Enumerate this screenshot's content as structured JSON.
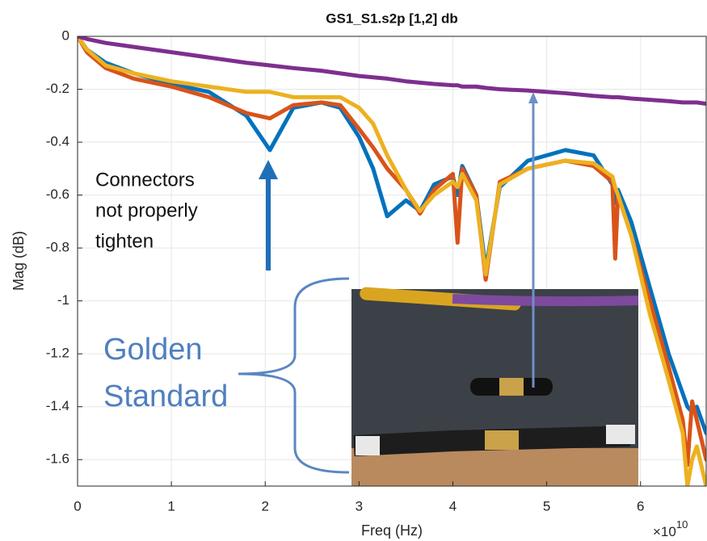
{
  "chart_data": {
    "type": "line",
    "title": "GS1_S1.s2p [1,2] db",
    "xlabel": "Freq (Hz)",
    "ylabel": "Mag (dB)",
    "x_multiplier": {
      "base": "×10",
      "exponent": "10"
    },
    "xlim": [
      0,
      67000000000.0
    ],
    "ylim": [
      -1.7,
      0
    ],
    "xticks": [
      0,
      {
        "value": 10000000000.0,
        "label": "1"
      },
      {
        "value": 20000000000.0,
        "label": "2"
      },
      {
        "value": 30000000000.0,
        "label": "3"
      },
      {
        "value": 40000000000.0,
        "label": "4"
      },
      {
        "value": 50000000000.0,
        "label": "5"
      },
      {
        "value": 60000000000.0,
        "label": "6"
      }
    ],
    "yticks": [
      0,
      -0.2,
      -0.4,
      -0.6,
      -0.8,
      -1,
      -1.2,
      -1.4,
      -1.6
    ],
    "grid": true,
    "x": [
      0,
      1000000000.0,
      3000000000.0,
      6000000000.0,
      10000000000.0,
      14000000000.0,
      18000000000.0,
      20500000000.0,
      23000000000.0,
      26000000000.0,
      28000000000.0,
      30000000000.0,
      31500000000.0,
      33000000000.0,
      35000000000.0,
      36500000000.0,
      38000000000.0,
      40000000000.0,
      40500000000.0,
      41000000000.0,
      42500000000.0,
      43500000000.0,
      45000000000.0,
      48000000000.0,
      52000000000.0,
      55000000000.0,
      57000000000.0,
      57300000000.0,
      57600000000.0,
      59000000000.0,
      61000000000.0,
      63000000000.0,
      64500000000.0,
      65000000000.0,
      65500000000.0,
      66000000000.0,
      67000000000.0
    ],
    "series": [
      {
        "color": "#0072bd",
        "values": [
          0,
          -0.05,
          -0.1,
          -0.14,
          -0.18,
          -0.21,
          -0.3,
          -0.43,
          -0.27,
          -0.25,
          -0.27,
          -0.38,
          -0.5,
          -0.68,
          -0.62,
          -0.66,
          -0.56,
          -0.53,
          -0.6,
          -0.49,
          -0.6,
          -0.88,
          -0.57,
          -0.47,
          -0.43,
          -0.45,
          -0.56,
          -0.63,
          -0.58,
          -0.7,
          -0.95,
          -1.2,
          -1.35,
          -1.4,
          -1.42,
          -1.4,
          -1.5
        ]
      },
      {
        "color": "#d95319",
        "values": [
          0,
          -0.06,
          -0.12,
          -0.16,
          -0.19,
          -0.23,
          -0.29,
          -0.31,
          -0.26,
          -0.25,
          -0.26,
          -0.35,
          -0.42,
          -0.5,
          -0.58,
          -0.67,
          -0.58,
          -0.52,
          -0.78,
          -0.5,
          -0.6,
          -0.92,
          -0.55,
          -0.5,
          -0.47,
          -0.49,
          -0.55,
          -0.84,
          -0.6,
          -0.75,
          -1.0,
          -1.25,
          -1.45,
          -1.62,
          -1.38,
          -1.45,
          -1.6
        ]
      },
      {
        "color": "#edb120",
        "values": [
          0,
          -0.05,
          -0.11,
          -0.14,
          -0.17,
          -0.19,
          -0.21,
          -0.21,
          -0.23,
          -0.23,
          -0.23,
          -0.27,
          -0.33,
          -0.45,
          -0.58,
          -0.66,
          -0.6,
          -0.55,
          -0.57,
          -0.52,
          -0.62,
          -0.9,
          -0.56,
          -0.5,
          -0.47,
          -0.48,
          -0.53,
          -0.57,
          -0.6,
          -0.75,
          -1.05,
          -1.3,
          -1.5,
          -1.7,
          -1.6,
          -1.55,
          -1.7
        ]
      },
      {
        "color": "#7e2f8e",
        "values": [
          0,
          -0.01,
          -0.025,
          -0.04,
          -0.06,
          -0.08,
          -0.1,
          -0.11,
          -0.12,
          -0.13,
          -0.14,
          -0.15,
          -0.155,
          -0.16,
          -0.17,
          -0.175,
          -0.18,
          -0.185,
          -0.185,
          -0.19,
          -0.19,
          -0.195,
          -0.2,
          -0.205,
          -0.215,
          -0.225,
          -0.23,
          -0.23,
          -0.23,
          -0.235,
          -0.24,
          -0.245,
          -0.25,
          -0.25,
          -0.25,
          -0.25,
          -0.255
        ]
      }
    ],
    "annotations": [
      [
        "Connectors",
        "not properly",
        "tighten"
      ],
      [
        "Golden",
        "Standard"
      ]
    ]
  }
}
